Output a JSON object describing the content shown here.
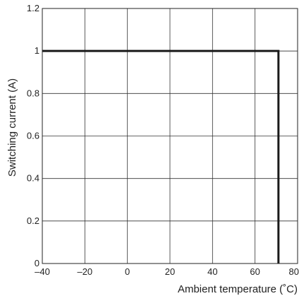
{
  "chart_data": {
    "type": "line",
    "xlabel": "Ambient temperature (˚C)",
    "ylabel": "Switching current (A)",
    "xlim": [
      -40,
      80
    ],
    "ylim": [
      0,
      1.2
    ],
    "x_ticks": [
      "–40",
      "–20",
      "0",
      "20",
      "40",
      "60",
      "80"
    ],
    "y_ticks": [
      "0",
      "0.2",
      "0.4",
      "0.6",
      "0.8",
      "1",
      "1.2"
    ],
    "grid": true,
    "series": [
      {
        "x": [
          -40,
          71,
          71
        ],
        "y": [
          1,
          1,
          0
        ]
      }
    ],
    "colors": {
      "line": "#1a1a1a",
      "grid": "#333333"
    }
  }
}
